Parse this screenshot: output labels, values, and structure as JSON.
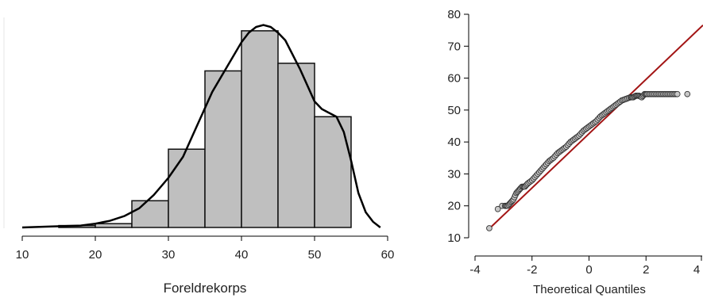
{
  "colors": {
    "bar_fill": "#bfbfbf",
    "bar_stroke": "#111111",
    "density_line": "#000000",
    "reference_line": "#a31515",
    "point_fill": "#c8c8c8",
    "point_stroke": "#333333",
    "axis": "#000000"
  },
  "chart_data": [
    {
      "type": "bar",
      "subtype": "histogram-with-density",
      "xlabel": "Foreldrekorps",
      "ylabel": "",
      "xlim": [
        10,
        60
      ],
      "xticks": [
        "10",
        "20",
        "30",
        "40",
        "50",
        "60"
      ],
      "bin_edges": [
        15,
        20,
        25,
        30,
        35,
        40,
        45,
        50,
        55
      ],
      "values": [
        1,
        2,
        14,
        41,
        82,
        103,
        86,
        58
      ],
      "ylim": [
        0,
        110
      ],
      "density_curve": {
        "x": [
          10,
          14,
          18,
          20,
          22,
          24,
          26,
          28,
          30,
          32,
          34,
          36,
          38,
          40,
          41,
          42,
          43,
          44,
          45,
          46,
          48,
          50,
          51,
          52,
          53,
          54,
          55,
          56,
          57,
          58,
          59
        ],
        "y": [
          0,
          0.5,
          1,
          2,
          3.5,
          6,
          10,
          17,
          26,
          37,
          54,
          71,
          84,
          97,
          102,
          105,
          106,
          105,
          102,
          98,
          83,
          66,
          62,
          60,
          58,
          50,
          35,
          18,
          8,
          3,
          0
        ]
      },
      "grid": false,
      "legend": "none"
    },
    {
      "type": "scatter",
      "subtype": "qq-plot",
      "title": "",
      "xlabel": "Theoretical Quantiles",
      "ylabel": "",
      "xlim": [
        -4,
        4
      ],
      "ylim": [
        10,
        80
      ],
      "xticks": [
        "-4",
        "-2",
        "0",
        "2",
        "4"
      ],
      "yticks": [
        "10",
        "20",
        "30",
        "40",
        "50",
        "60",
        "70",
        "80"
      ],
      "reference_line": {
        "slope": 8.5,
        "intercept": 42.6
      },
      "points": {
        "x": [
          -3.5,
          -3.2,
          -3.05,
          -2.95,
          -2.85,
          -2.75,
          -2.65,
          -2.55,
          -2.45,
          -2.35,
          -2.25,
          -2.15,
          -2.0,
          -1.85,
          -1.7,
          -1.55,
          -1.4,
          -1.25,
          -1.1,
          -0.95,
          -0.8,
          -0.65,
          -0.5,
          -0.35,
          -0.2,
          -0.05,
          0.1,
          0.25,
          0.4,
          0.55,
          0.7,
          0.85,
          1.0,
          1.15,
          1.3,
          1.45,
          1.55,
          1.65,
          1.75,
          1.85,
          1.95,
          2.05,
          2.2,
          2.35,
          2.5,
          2.65,
          2.8,
          2.95,
          3.1,
          3.45
        ],
        "y": [
          13,
          19,
          20,
          20,
          20,
          21,
          22,
          24,
          25,
          26,
          26,
          27,
          28,
          29.5,
          31,
          32.5,
          34,
          35,
          36.5,
          37.5,
          38.5,
          40,
          41,
          42,
          43.5,
          44.5,
          45.5,
          46.5,
          48,
          49,
          50,
          51,
          52,
          53,
          53.5,
          54,
          54,
          54.5,
          54.5,
          54,
          55,
          55,
          55,
          55,
          55,
          55,
          55,
          55,
          55,
          55
        ]
      },
      "grid": false,
      "legend": "none"
    }
  ]
}
